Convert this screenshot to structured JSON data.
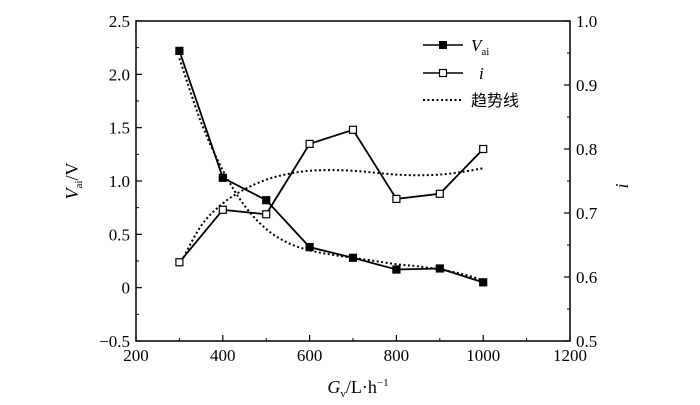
{
  "chart_data": {
    "type": "line",
    "xlabel": "G_v/L·h⁻¹",
    "xlabel_main": "G",
    "xlabel_sub": "v",
    "xlabel_unit": "/L·h",
    "xlabel_sup": "−1",
    "ylabel_left_main": "V",
    "ylabel_left_sub": "ai",
    "ylabel_left_unit": "/V",
    "ylabel_right": "i",
    "xlim": [
      200,
      1200
    ],
    "ylim_left": [
      -0.5,
      2.5
    ],
    "ylim_right": [
      0.5,
      1.0
    ],
    "xticks": [
      200,
      400,
      600,
      800,
      1000,
      1200
    ],
    "xtick_labels": [
      "200",
      "400",
      "600",
      "800",
      "1000",
      "1200"
    ],
    "yticks_left": [
      -0.5,
      0,
      0.5,
      1.0,
      1.5,
      2.0,
      2.5
    ],
    "ytick_labels_left": [
      "−0.5",
      "0",
      "0.5",
      "1.0",
      "1.5",
      "2.0",
      "2.5"
    ],
    "yticks_right": [
      0.5,
      0.6,
      0.7,
      0.8,
      0.9,
      1.0
    ],
    "ytick_labels_right": [
      "0.5",
      "0.6",
      "0.7",
      "0.8",
      "0.9",
      "1.0"
    ],
    "series": [
      {
        "name": "V_ai",
        "legend_main": "V",
        "legend_sub": "ai",
        "axis": "left",
        "marker": "filled-square",
        "x": [
          300,
          400,
          500,
          600,
          700,
          800,
          900,
          1000
        ],
        "y": [
          2.22,
          1.03,
          0.82,
          0.38,
          0.28,
          0.17,
          0.18,
          0.05
        ]
      },
      {
        "name": "i",
        "legend_main": "i",
        "axis": "right",
        "marker": "open-square",
        "x": [
          300,
          400,
          500,
          600,
          700,
          800,
          900,
          1000
        ],
        "y": [
          0.623,
          0.705,
          0.698,
          0.808,
          0.83,
          0.722,
          0.73,
          0.8
        ]
      }
    ],
    "trendlines": [
      {
        "name": "趋势线",
        "for_series": "V_ai",
        "axis": "left",
        "x": [
          300,
          350,
          400,
          450,
          500,
          550,
          600,
          650,
          700,
          750,
          800,
          850,
          900,
          950,
          1000
        ],
        "y": [
          2.15,
          1.55,
          1.1,
          0.77,
          0.55,
          0.42,
          0.35,
          0.31,
          0.28,
          0.25,
          0.22,
          0.2,
          0.17,
          0.13,
          0.07
        ]
      },
      {
        "name": "趋势线",
        "for_series": "i",
        "axis": "right",
        "x": [
          300,
          350,
          400,
          450,
          500,
          550,
          600,
          650,
          700,
          750,
          800,
          850,
          900,
          950,
          1000
        ],
        "y": [
          0.618,
          0.68,
          0.715,
          0.737,
          0.752,
          0.761,
          0.766,
          0.767,
          0.766,
          0.763,
          0.76,
          0.759,
          0.76,
          0.764,
          0.77
        ]
      }
    ],
    "legend": {
      "position": "top-right",
      "entries": [
        "V_ai",
        "i",
        "趋势线"
      ],
      "trend_label": "趋势线"
    }
  }
}
